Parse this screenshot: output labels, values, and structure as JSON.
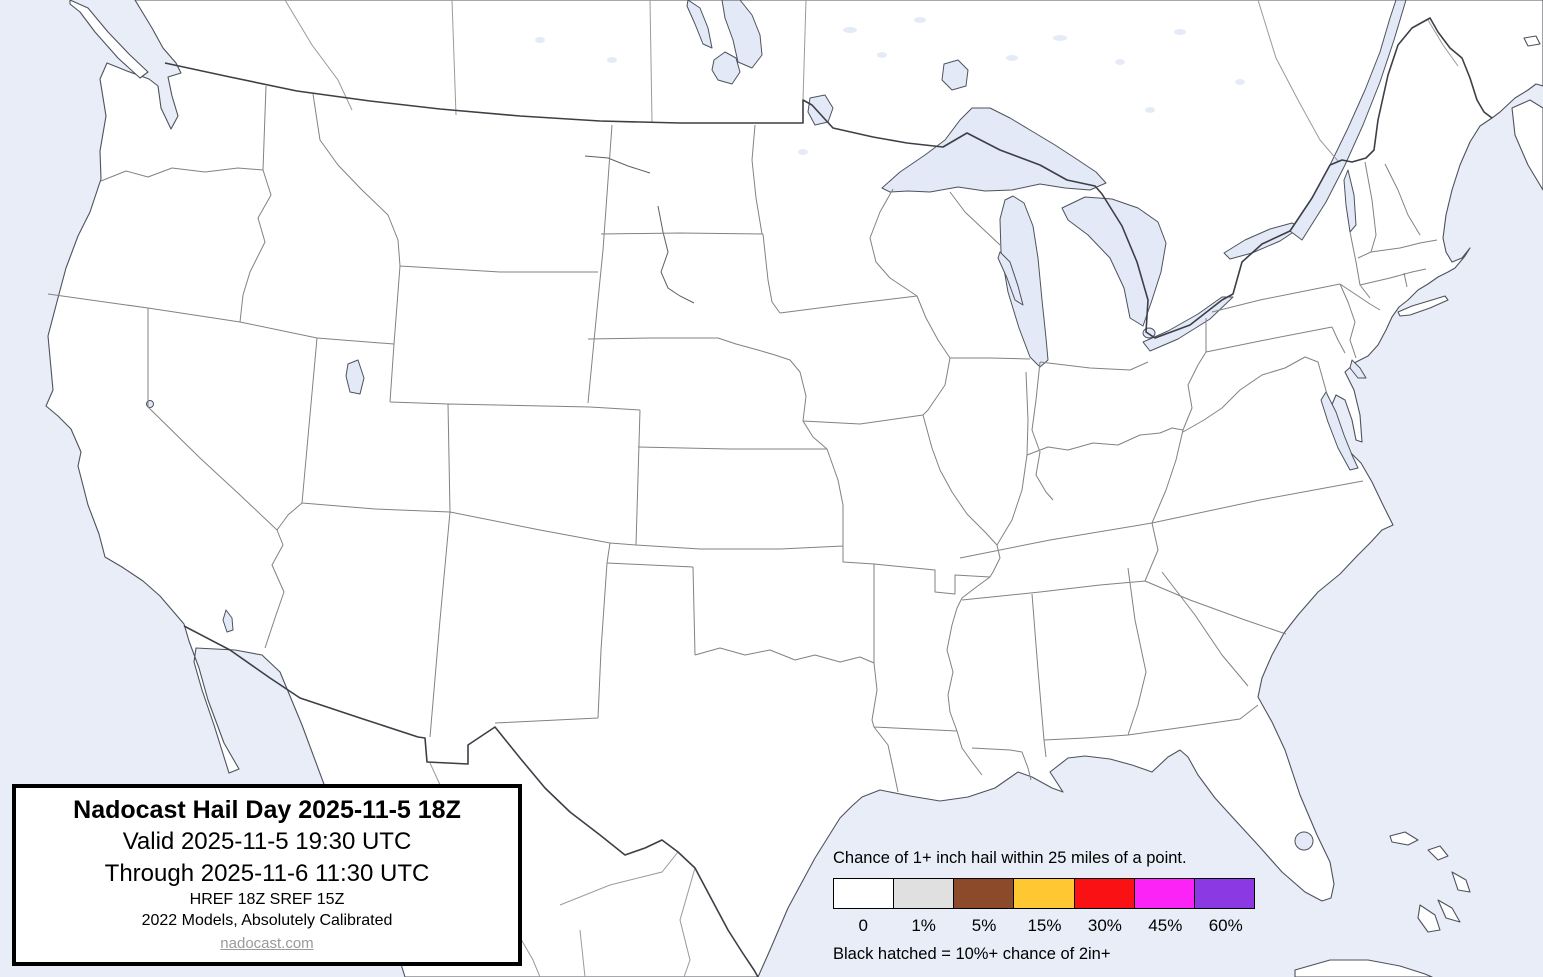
{
  "title_box": {
    "title": "Nadocast Hail Day 2025-11-5 18Z",
    "valid_line": "Valid 2025-11-5 19:30 UTC",
    "through_line": "Through 2025-11-6 11:30 UTC",
    "models_line": "HREF 18Z SREF 15Z",
    "calibration_line": "2022 Models, Absolutely Calibrated",
    "website": "nadocast.com"
  },
  "legend": {
    "heading": "Chance of 1+ inch hail within 25 miles of a point.",
    "note": "Black hatched = 10%+ chance of 2in+",
    "bins": [
      {
        "label": "0",
        "color": "#ffffff"
      },
      {
        "label": "1%",
        "color": "#e0e0e0"
      },
      {
        "label": "5%",
        "color": "#8d4a2b"
      },
      {
        "label": "15%",
        "color": "#ffc732"
      },
      {
        "label": "30%",
        "color": "#fa1113"
      },
      {
        "label": "45%",
        "color": "#fb23f5"
      },
      {
        "label": "60%",
        "color": "#8b39e3"
      }
    ]
  },
  "map": {
    "colors": {
      "ocean": "#e9edf8",
      "land": "#ffffff",
      "lakes": "#e3e9f6",
      "coast": "#4d525c",
      "state_border": "#828282",
      "country_border": "#3c3f46"
    }
  }
}
